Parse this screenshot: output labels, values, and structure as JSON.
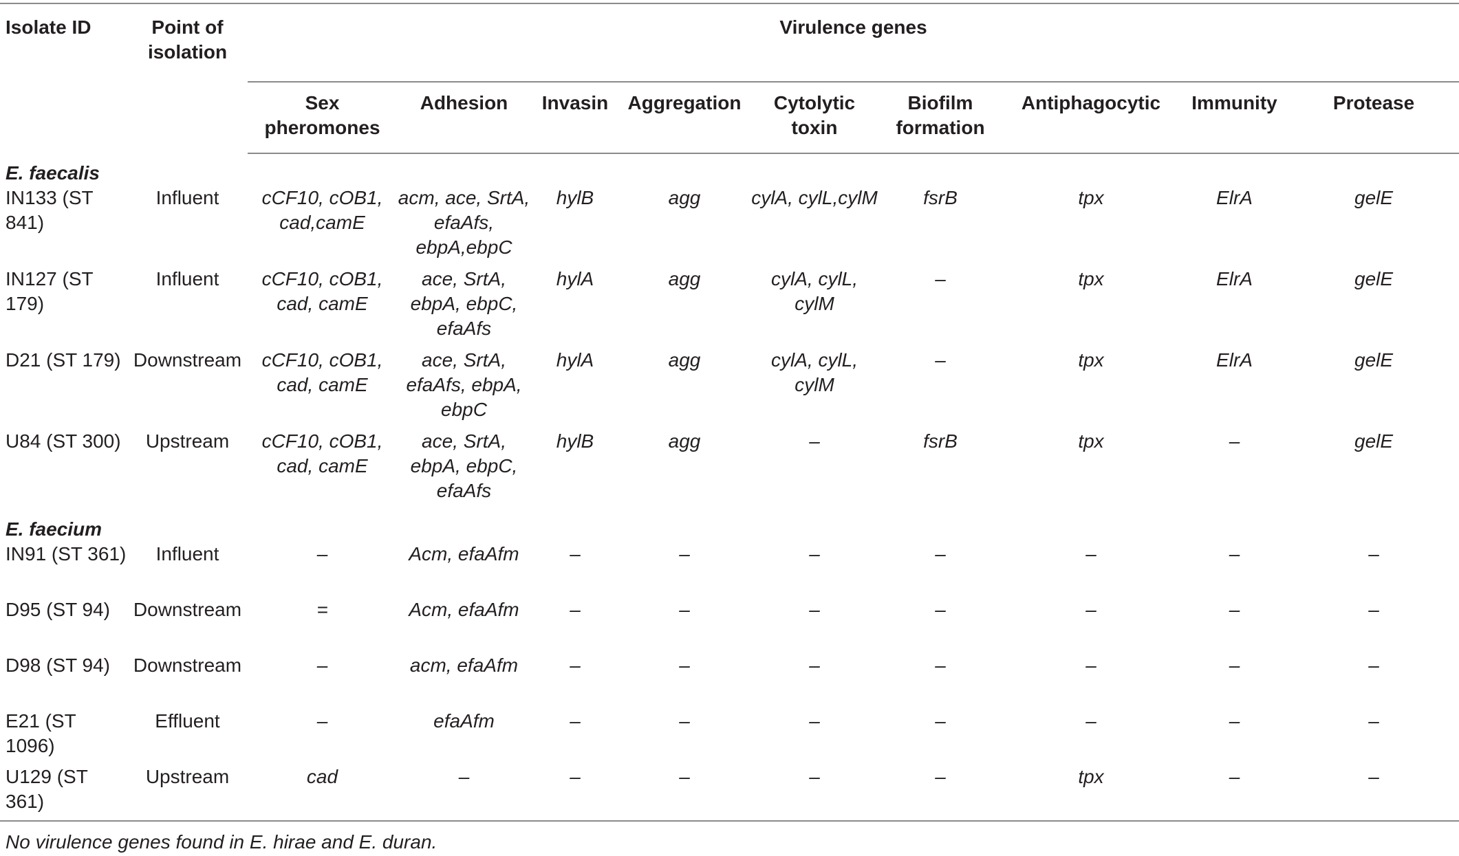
{
  "headers": {
    "isolate_id": "Isolate ID",
    "point_of_isolation": "Point of isolation",
    "virulence_genes": "Virulence genes",
    "sub": [
      "Sex pheromones",
      "Adhesion",
      "Invasin",
      "Aggregation",
      "Cytolytic toxin",
      "Biofilm formation",
      "Antiphagocytic",
      "Immunity",
      "Protease"
    ]
  },
  "groups": [
    {
      "species": "E. faecalis",
      "rows": [
        {
          "isolate": "IN133 (ST 841)",
          "point": "Influent",
          "cells": [
            "cCF10, cOB1, cad,camE",
            "acm, ace, SrtA, efaAfs, ebpA,ebpC",
            "hylB",
            "agg",
            "cylA, cylL,cylM",
            "fsrB",
            "tpx",
            "ElrA",
            "gelE"
          ]
        },
        {
          "isolate": "IN127 (ST 179)",
          "point": "Influent",
          "cells": [
            "cCF10, cOB1, cad, camE",
            "ace, SrtA, ebpA, ebpC, efaAfs",
            "hylA",
            "agg",
            "cylA, cylL, cylM",
            "–",
            "tpx",
            "ElrA",
            "gelE"
          ]
        },
        {
          "isolate": "D21 (ST 179)",
          "point": "Downstream",
          "cells": [
            "cCF10, cOB1, cad, camE",
            "ace, SrtA, efaAfs, ebpA, ebpC",
            "hylA",
            "agg",
            "cylA, cylL, cylM",
            "–",
            "tpx",
            "ElrA",
            "gelE"
          ]
        },
        {
          "isolate": "U84 (ST 300)",
          "point": "Upstream",
          "cells": [
            "cCF10, cOB1, cad, camE",
            "ace, SrtA, ebpA, ebpC, efaAfs",
            "hylB",
            "agg",
            "–",
            "fsrB",
            "tpx",
            "–",
            "gelE"
          ]
        }
      ]
    },
    {
      "species": "E. faecium",
      "rows": [
        {
          "isolate": "IN91 (ST 361)",
          "point": "Influent",
          "cells": [
            "–",
            "Acm, efaAfm",
            "–",
            "–",
            "–",
            "–",
            "–",
            "–",
            "–"
          ]
        },
        {
          "isolate": "D95 (ST 94)",
          "point": "Downstream",
          "cells": [
            "=",
            "Acm, efaAfm",
            "–",
            "–",
            "–",
            "–",
            "–",
            "–",
            "–"
          ]
        },
        {
          "isolate": "D98 (ST 94)",
          "point": "Downstream",
          "cells": [
            "–",
            "acm, efaAfm",
            "–",
            "–",
            "–",
            "–",
            "–",
            "–",
            "–"
          ]
        },
        {
          "isolate": "E21 (ST 1096)",
          "point": "Effluent",
          "cells": [
            "–",
            "efaAfm",
            "–",
            "–",
            "–",
            "–",
            "–",
            "–",
            "–"
          ]
        },
        {
          "isolate": "U129 (ST 361)",
          "point": "Upstream",
          "cells": [
            "cad",
            "–",
            "–",
            "–",
            "–",
            "–",
            "tpx",
            "–",
            "–"
          ]
        }
      ]
    }
  ],
  "footnote": "No virulence genes found in E. hirae and E. duran."
}
